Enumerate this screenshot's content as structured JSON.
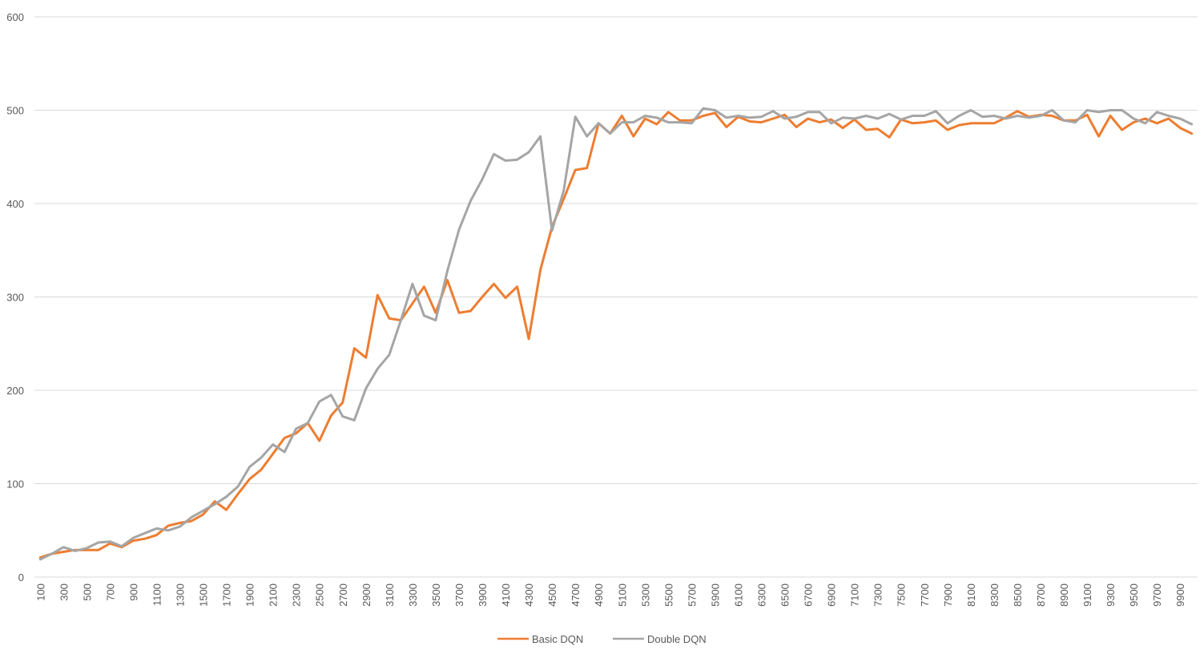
{
  "chart_data": {
    "type": "line",
    "title": "",
    "xlabel": "",
    "ylabel": "",
    "ylim": [
      0,
      600
    ],
    "yticks": [
      0,
      100,
      200,
      300,
      400,
      500,
      600
    ],
    "grid": true,
    "legend_position": "bottom",
    "x": [
      100,
      200,
      300,
      400,
      500,
      600,
      700,
      800,
      900,
      1000,
      1100,
      1200,
      1300,
      1400,
      1500,
      1600,
      1700,
      1800,
      1900,
      2000,
      2100,
      2200,
      2300,
      2400,
      2500,
      2600,
      2700,
      2800,
      2900,
      3000,
      3100,
      3200,
      3300,
      3400,
      3500,
      3600,
      3700,
      3800,
      3900,
      4000,
      4100,
      4200,
      4300,
      4400,
      4500,
      4600,
      4700,
      4800,
      4900,
      5000,
      5100,
      5200,
      5300,
      5400,
      5500,
      5600,
      5700,
      5800,
      5900,
      6000,
      6100,
      6200,
      6300,
      6400,
      6500,
      6600,
      6700,
      6800,
      6900,
      7000,
      7100,
      7200,
      7300,
      7400,
      7500,
      7600,
      7700,
      7800,
      7900,
      8000,
      8100,
      8200,
      8300,
      8400,
      8500,
      8600,
      8700,
      8800,
      8900,
      9000,
      9100,
      9200,
      9300,
      9400,
      9500,
      9600,
      9700,
      9800,
      9900,
      10000
    ],
    "x_tick_labels": [
      "100",
      "300",
      "500",
      "700",
      "900",
      "1100",
      "1300",
      "1500",
      "1700",
      "1900",
      "2100",
      "2300",
      "2500",
      "2700",
      "2900",
      "3100",
      "3300",
      "3500",
      "3700",
      "3900",
      "4100",
      "4300",
      "4500",
      "4700",
      "4900",
      "5100",
      "5300",
      "5500",
      "5700",
      "5900",
      "6100",
      "6300",
      "6500",
      "6700",
      "6900",
      "7100",
      "7300",
      "7500",
      "7700",
      "7900",
      "8100",
      "8300",
      "8500",
      "8700",
      "8900",
      "9100",
      "9300",
      "9500",
      "9700",
      "9900"
    ],
    "series": [
      {
        "name": "Basic DQN",
        "color": "#ED7D31",
        "values": [
          21,
          25,
          27,
          29,
          29,
          29,
          36,
          32,
          39,
          41,
          45,
          55,
          58,
          60,
          67,
          81,
          72,
          89,
          105,
          115,
          132,
          149,
          154,
          165,
          146,
          173,
          187,
          245,
          235,
          302,
          277,
          275,
          293,
          311,
          283,
          318,
          283,
          285,
          300,
          314,
          299,
          311,
          255,
          329,
          375,
          405,
          436,
          438,
          486,
          475,
          494,
          472,
          491,
          485,
          498,
          489,
          489,
          494,
          497,
          482,
          493,
          488,
          487,
          491,
          495,
          482,
          491,
          487,
          490,
          481,
          490,
          479,
          480,
          471,
          490,
          486,
          487,
          489,
          479,
          484,
          486,
          486,
          486,
          492,
          499,
          493,
          495,
          494,
          489,
          489,
          495,
          472,
          494,
          479,
          487,
          491,
          486,
          491,
          481,
          475
        ]
      },
      {
        "name": "Double DQN",
        "color": "#A5A5A5",
        "values": [
          19,
          25,
          32,
          28,
          31,
          37,
          38,
          33,
          42,
          47,
          52,
          50,
          54,
          64,
          71,
          78,
          86,
          97,
          118,
          128,
          142,
          134,
          159,
          165,
          188,
          195,
          172,
          168,
          202,
          223,
          238,
          275,
          314,
          280,
          275,
          328,
          372,
          403,
          426,
          453,
          446,
          447,
          455,
          472,
          371,
          414,
          493,
          472,
          486,
          475,
          487,
          487,
          494,
          492,
          487,
          487,
          486,
          502,
          500,
          492,
          494,
          492,
          493,
          499,
          491,
          493,
          498,
          498,
          486,
          492,
          491,
          494,
          491,
          496,
          490,
          494,
          494,
          499,
          486,
          494,
          500,
          493,
          494,
          491,
          494,
          492,
          494,
          500,
          489,
          487,
          500,
          498,
          500,
          500,
          491,
          486,
          498,
          494,
          491,
          485
        ]
      }
    ]
  }
}
